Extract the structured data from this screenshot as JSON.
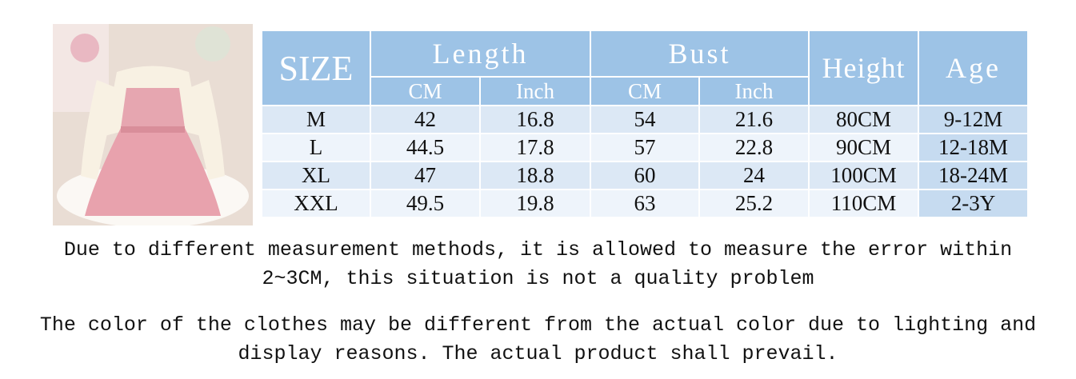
{
  "table": {
    "size_header": "SIZE",
    "groups": [
      "Length",
      "Bust",
      "Height",
      "Age"
    ],
    "subheaders": [
      "CM",
      "Inch",
      "CM",
      "Inch"
    ],
    "rows": [
      [
        "M",
        "42",
        "16.8",
        "54",
        "21.6",
        "80CM",
        "9-12M"
      ],
      [
        "L",
        "44.5",
        "17.8",
        "57",
        "22.8",
        "90CM",
        "12-18M"
      ],
      [
        "XL",
        "47",
        "18.8",
        "60",
        "24",
        "100CM",
        "18-24M"
      ],
      [
        "XXL",
        "49.5",
        "19.8",
        "63",
        "25.2",
        "110CM",
        "2-3Y"
      ]
    ]
  },
  "notes": [
    [
      "Due to different measurement methods, it is allowed to measure the error within",
      "2~3CM, this situation is not a quality problem"
    ],
    [
      "The color of the clothes may be different from the actual color due to lighting and",
      "display reasons. The actual product shall prevail."
    ]
  ]
}
